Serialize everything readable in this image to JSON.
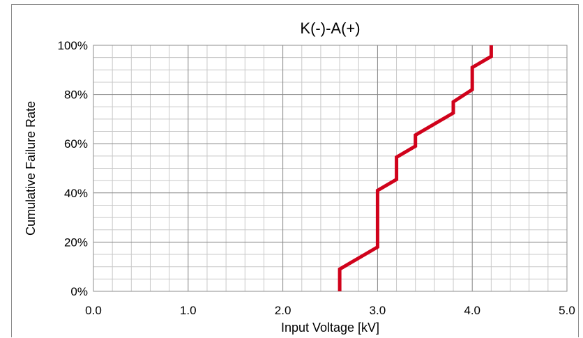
{
  "chart_data": {
    "type": "line",
    "title": "K(-)-A(+)",
    "xlabel": "Input Voltage [kV]",
    "ylabel": "Cumulative Failure Rate",
    "xlim": [
      0.0,
      5.0
    ],
    "ylim": [
      0,
      100
    ],
    "x_ticks": [
      "0.0",
      "1.0",
      "2.0",
      "3.0",
      "4.0",
      "5.0"
    ],
    "y_ticks": [
      "0%",
      "20%",
      "40%",
      "60%",
      "80%",
      "100%"
    ],
    "grid": true,
    "series": [
      {
        "color": "#d0021b",
        "x": [
          2.6,
          2.6,
          3.0,
          3.0,
          3.2,
          3.2,
          3.4,
          3.4,
          3.8,
          3.8,
          4.0,
          4.0,
          4.2,
          4.2
        ],
        "y": [
          0,
          9,
          18,
          41,
          45.5,
          54.5,
          59,
          63.5,
          72.5,
          77,
          82,
          91,
          95.5,
          100
        ]
      }
    ]
  }
}
